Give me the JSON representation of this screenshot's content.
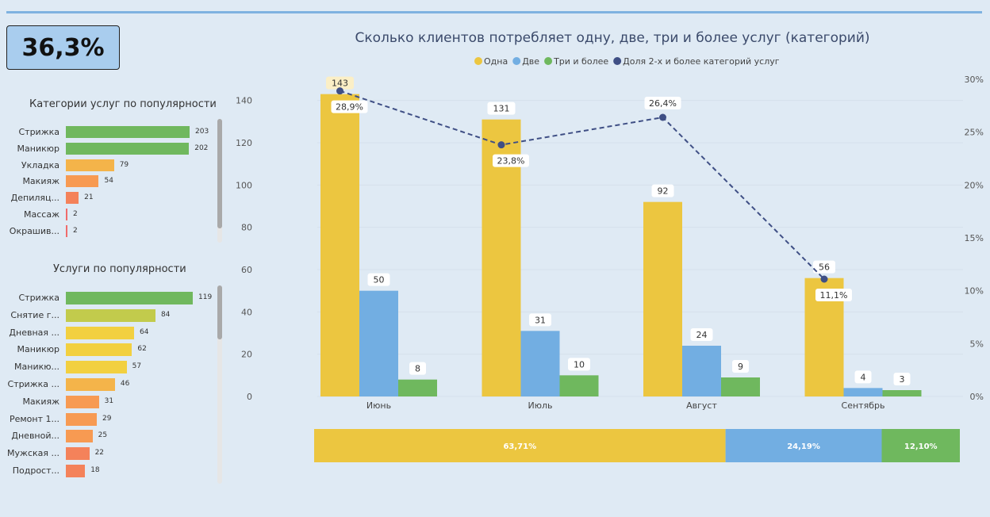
{
  "kpi": {
    "value": "36,3%"
  },
  "categories_panel": {
    "title": "Категории услуг по популярности",
    "items": [
      {
        "label": "Стрижка",
        "value": 203,
        "color": "#70b85e"
      },
      {
        "label": "Маникюр",
        "value": 202,
        "color": "#70b85e"
      },
      {
        "label": "Укладка",
        "value": 79,
        "color": "#f4b44a"
      },
      {
        "label": "Макияж",
        "value": 54,
        "color": "#f79a52"
      },
      {
        "label": "Депиляц...",
        "value": 21,
        "color": "#f4825a"
      },
      {
        "label": "Массаж",
        "value": 2,
        "color": "#f06b6b"
      },
      {
        "label": "Окрашив...",
        "value": 2,
        "color": "#f06b6b"
      }
    ]
  },
  "services_panel": {
    "title": "Услуги по популярности",
    "items": [
      {
        "label": "Стрижка",
        "value": 119,
        "color": "#70b85e"
      },
      {
        "label": "Снятие г...",
        "value": 84,
        "color": "#c2cb4c"
      },
      {
        "label": "Дневная ...",
        "value": 64,
        "color": "#f2d040"
      },
      {
        "label": "Маникюр",
        "value": 62,
        "color": "#f2d040"
      },
      {
        "label": "Маникю...",
        "value": 57,
        "color": "#f2d040"
      },
      {
        "label": "Стрижка ...",
        "value": 46,
        "color": "#f4b44a"
      },
      {
        "label": "Макияж",
        "value": 31,
        "color": "#f79a52"
      },
      {
        "label": "Ремонт 1...",
        "value": 29,
        "color": "#f79a52"
      },
      {
        "label": "Дневной...",
        "value": 25,
        "color": "#f79a52"
      },
      {
        "label": "Мужская ...",
        "value": 22,
        "color": "#f4825a"
      },
      {
        "label": "Подрост...",
        "value": 18,
        "color": "#f4825a"
      }
    ]
  },
  "chart_data": {
    "type": "bar",
    "title": "Сколько клиентов потребляет одну, две, три и более услуг (категорий)",
    "categories": [
      "Июнь",
      "Июль",
      "Август",
      "Сентябрь"
    ],
    "series": [
      {
        "name": "Одна",
        "values": [
          143,
          131,
          92,
          56
        ],
        "color": "#ecc640"
      },
      {
        "name": "Две",
        "values": [
          50,
          31,
          24,
          4
        ],
        "color": "#72aee2"
      },
      {
        "name": "Три и более",
        "values": [
          8,
          10,
          9,
          3
        ],
        "color": "#6fb85e"
      }
    ],
    "line_series": {
      "name": "Доля 2-х и более категорий услуг",
      "values": [
        28.9,
        23.8,
        26.4,
        11.1
      ],
      "labels": [
        "28,9%",
        "23,8%",
        "26,4%",
        "11,1%"
      ],
      "color": "#3f4f85"
    },
    "ylim": [
      0,
      150
    ],
    "yticks": [
      0,
      20,
      40,
      60,
      80,
      100,
      120,
      140
    ],
    "y2lim": [
      0,
      30
    ],
    "y2ticks": [
      "0%",
      "5%",
      "10%",
      "15%",
      "20%",
      "25%",
      "30%"
    ],
    "legend_position": "top",
    "grid": true
  },
  "share_bar": {
    "segments": [
      {
        "label": "63,71%",
        "value": 63.71,
        "color": "#ecc640"
      },
      {
        "label": "24,19%",
        "value": 24.19,
        "color": "#72aee2"
      },
      {
        "label": "12,10%",
        "value": 12.1,
        "color": "#6fb85e"
      }
    ]
  }
}
